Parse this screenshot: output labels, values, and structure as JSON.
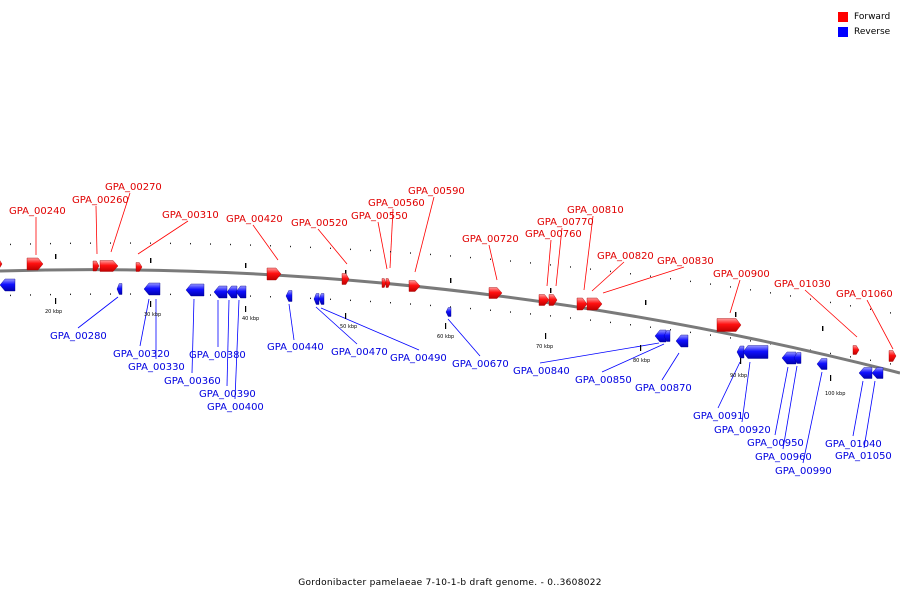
{
  "legend": {
    "forward": {
      "label": "Forward",
      "color": "#ff0000"
    },
    "reverse": {
      "label": "Reverse",
      "color": "#0000ff"
    }
  },
  "caption": "Gordonibacter pamelaeae 7-10-1-b draft genome. - 0..3608022",
  "scale_labels": [
    "20 kbp",
    "30 kbp",
    "40 kbp",
    "50 kbp",
    "60 kbp",
    "70 kbp",
    "80 kbp",
    "90 kbp",
    "100 kbp"
  ],
  "forward_labels": [
    "GPA_00240",
    "GPA_00260",
    "GPA_00270",
    "GPA_00310",
    "GPA_00420",
    "GPA_00520",
    "GPA_00550",
    "GPA_00560",
    "GPA_00590",
    "GPA_00720",
    "GPA_00760",
    "GPA_00770",
    "GPA_00810",
    "GPA_00820",
    "GPA_00830",
    "GPA_00900",
    "GPA_01030",
    "GPA_01060"
  ],
  "reverse_labels": [
    "GPA_00280",
    "GPA_00320",
    "GPA_00330",
    "GPA_00360",
    "GPA_00380",
    "GPA_00390",
    "GPA_00400",
    "GPA_00440",
    "GPA_00470",
    "GPA_00490",
    "GPA_00670",
    "GPA_00840",
    "GPA_00850",
    "GPA_00870",
    "GPA_00910",
    "GPA_00920",
    "GPA_00950",
    "GPA_00960",
    "GPA_00990",
    "GPA_01040",
    "GPA_01050"
  ]
}
